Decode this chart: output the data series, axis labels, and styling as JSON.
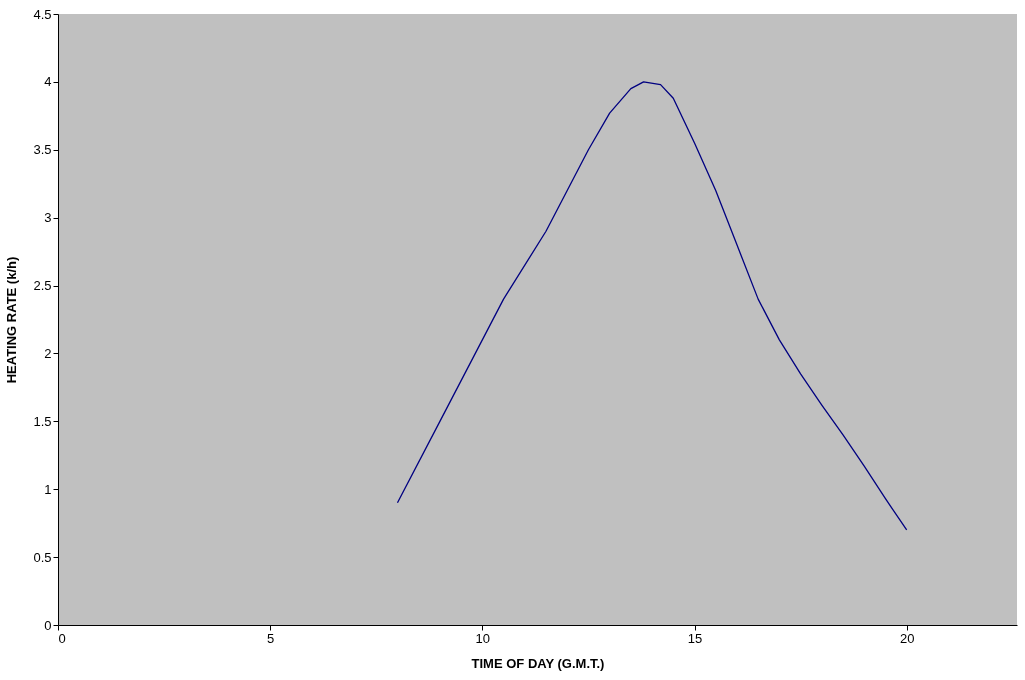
{
  "chart_data": {
    "type": "line",
    "xlabel": "TIME OF DAY (G.M.T.)",
    "ylabel": "HEATING RATE (k/h)",
    "x": [
      8,
      9,
      10,
      10.5,
      11.5,
      12,
      12.5,
      13,
      13.5,
      13.8,
      14.2,
      14.5,
      15,
      15.5,
      16,
      16.5,
      17,
      17.5,
      18,
      18.5,
      19,
      19.5,
      20
    ],
    "series": [
      {
        "color": "#000080",
        "values": [
          0.9,
          1.5,
          2.1,
          2.4,
          2.9,
          3.2,
          3.5,
          3.77,
          3.95,
          4.0,
          3.98,
          3.88,
          3.55,
          3.2,
          2.8,
          2.4,
          2.1,
          1.85,
          1.62,
          1.4,
          1.17,
          0.93,
          0.7
        ]
      }
    ],
    "xlim": [
      0,
      22.6
    ],
    "xticks": [
      0,
      5,
      10,
      15,
      20
    ],
    "ylim": [
      0,
      4.5
    ],
    "yticks": [
      0,
      0.5,
      1,
      1.5,
      2,
      2.5,
      3,
      3.5,
      4,
      4.5
    ],
    "grid": false,
    "marker": "none",
    "line_style": "solid"
  }
}
